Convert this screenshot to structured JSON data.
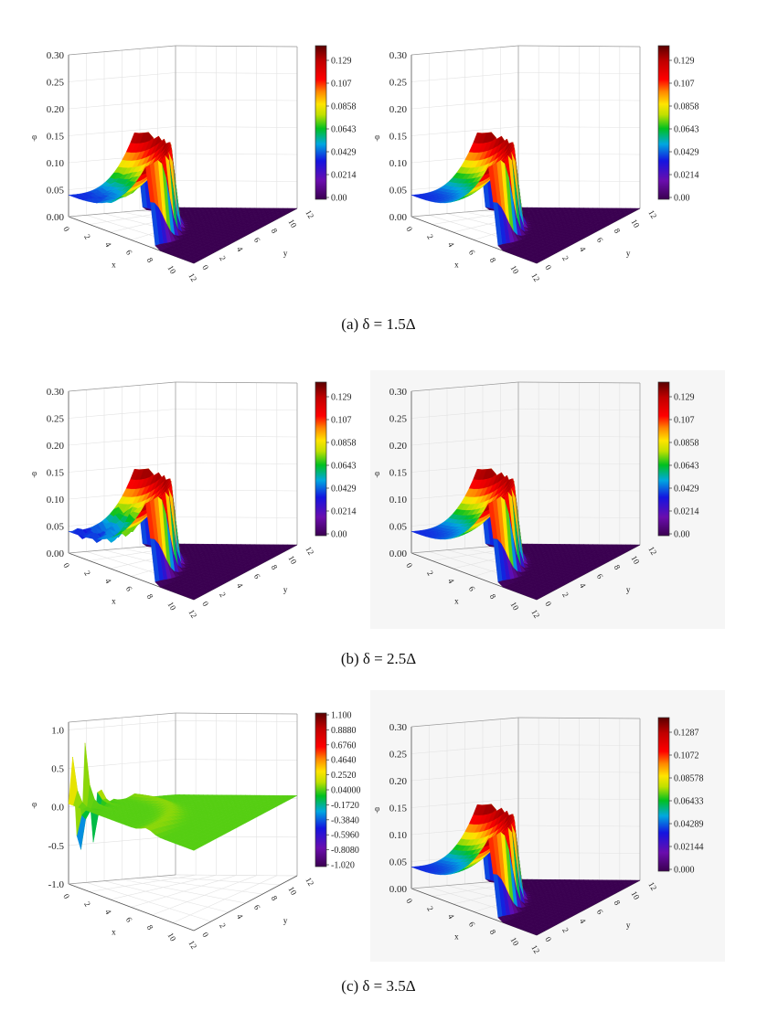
{
  "captions": [
    "(a)  δ = 1.5Δ",
    "(b)  δ = 2.5Δ",
    "(c)  δ = 3.5Δ"
  ],
  "chart_data": [
    {
      "type": "surface",
      "row": "a",
      "position": "left",
      "xlabel": "x",
      "ylabel": "y",
      "zlabel": "φ",
      "xticks": [
        "0",
        "2",
        "4",
        "6",
        "8",
        "10",
        "12"
      ],
      "yticks": [
        "0",
        "2",
        "4",
        "6",
        "8",
        "10",
        "12"
      ],
      "zlim": [
        0,
        0.3
      ],
      "zticks": [
        "0.00",
        "0.05",
        "0.10",
        "0.15",
        "0.20",
        "0.25",
        "0.30"
      ],
      "colorbar": {
        "range": [
          0,
          0.15
        ],
        "ticks": [
          "0.129",
          "0.107",
          "0.0858",
          "0.0643",
          "0.0429",
          "0.0214",
          "0.00"
        ]
      },
      "surface": {
        "plateau": 0.04,
        "peak": 0.15,
        "wall_radius": 7.5,
        "outer": 0.0,
        "noise": 0.3
      }
    },
    {
      "type": "surface",
      "row": "a",
      "position": "right",
      "xlabel": "x",
      "ylabel": "y",
      "zlabel": "φ",
      "xticks": [
        "0",
        "2",
        "4",
        "6",
        "8",
        "10",
        "12"
      ],
      "yticks": [
        "0",
        "2",
        "4",
        "6",
        "8",
        "10",
        "12"
      ],
      "zlim": [
        0,
        0.3
      ],
      "zticks": [
        "0.00",
        "0.05",
        "0.10",
        "0.15",
        "0.20",
        "0.25",
        "0.30"
      ],
      "colorbar": {
        "range": [
          0,
          0.15
        ],
        "ticks": [
          "0.129",
          "0.107",
          "0.0858",
          "0.0643",
          "0.0429",
          "0.0214",
          "0.00"
        ]
      },
      "surface": {
        "plateau": 0.04,
        "peak": 0.15,
        "wall_radius": 7.5,
        "outer": 0.0,
        "noise": 0
      }
    },
    {
      "type": "surface",
      "row": "b",
      "position": "left",
      "xlabel": "x",
      "ylabel": "y",
      "zlabel": "φ",
      "xticks": [
        "0",
        "2",
        "4",
        "6",
        "8",
        "10",
        "12"
      ],
      "yticks": [
        "0",
        "2",
        "4",
        "6",
        "8",
        "10",
        "12"
      ],
      "zlim": [
        0,
        0.3
      ],
      "zticks": [
        "0.00",
        "0.05",
        "0.10",
        "0.15",
        "0.20",
        "0.25",
        "0.30"
      ],
      "colorbar": {
        "range": [
          0,
          0.15
        ],
        "ticks": [
          "0.129",
          "0.107",
          "0.0858",
          "0.0643",
          "0.0429",
          "0.0214",
          "0.00"
        ]
      },
      "surface": {
        "plateau": 0.04,
        "peak": 0.15,
        "wall_radius": 7.5,
        "outer": 0.0,
        "noise": 1
      }
    },
    {
      "type": "surface",
      "row": "b",
      "position": "right",
      "xlabel": "x",
      "ylabel": "y",
      "zlabel": "φ",
      "xticks": [
        "0",
        "2",
        "4",
        "6",
        "8",
        "10",
        "12"
      ],
      "yticks": [
        "0",
        "2",
        "4",
        "6",
        "8",
        "10",
        "12"
      ],
      "zlim": [
        0,
        0.3
      ],
      "zticks": [
        "0.00",
        "0.05",
        "0.10",
        "0.15",
        "0.20",
        "0.25",
        "0.30"
      ],
      "colorbar": {
        "range": [
          0,
          0.15
        ],
        "ticks": [
          "0.129",
          "0.107",
          "0.0858",
          "0.0643",
          "0.0429",
          "0.0214",
          "0.00"
        ]
      },
      "surface": {
        "plateau": 0.04,
        "peak": 0.15,
        "wall_radius": 7.5,
        "outer": 0.0,
        "noise": 0
      }
    },
    {
      "type": "surface",
      "row": "c",
      "position": "left",
      "xlabel": "x",
      "ylabel": "y",
      "zlabel": "φ",
      "xticks": [
        "0",
        "2",
        "4",
        "6",
        "8",
        "10",
        "12"
      ],
      "yticks": [
        "0",
        "2",
        "4",
        "6",
        "8",
        "10",
        "12"
      ],
      "zlim": [
        -1.0,
        1.1
      ],
      "zticks": [
        "-1.0",
        "-0.5",
        "0.0",
        "0.5",
        "1.0"
      ],
      "zvalues": [
        -1.0,
        -0.5,
        0.0,
        0.5,
        1.0
      ],
      "colorbar": {
        "range": [
          -1.02,
          1.1
        ],
        "ticks": [
          "1.100",
          "0.8880",
          "0.6760",
          "0.4640",
          "0.2520",
          "0.04000",
          "-0.1720",
          "-0.3840",
          "-0.5960",
          "-0.8080",
          "-1.020"
        ]
      },
      "surface": {
        "plateau": 0.04,
        "peak": 0.12,
        "wall_radius": 7.5,
        "outer": 0.04,
        "noise": 0,
        "oscillation": 0.9
      }
    },
    {
      "type": "surface",
      "row": "c",
      "position": "right",
      "xlabel": "x",
      "ylabel": "y",
      "zlabel": "φ",
      "xticks": [
        "0",
        "2",
        "4",
        "6",
        "8",
        "10",
        "12"
      ],
      "yticks": [
        "0",
        "2",
        "4",
        "6",
        "8",
        "10",
        "12"
      ],
      "zlim": [
        0,
        0.3
      ],
      "zticks": [
        "0.00",
        "0.05",
        "0.10",
        "0.15",
        "0.20",
        "0.25",
        "0.30"
      ],
      "colorbar": {
        "range": [
          0,
          0.15
        ],
        "ticks": [
          "0.1287",
          "0.1072",
          "0.08578",
          "0.06433",
          "0.04289",
          "0.02144",
          "0.000"
        ]
      },
      "surface": {
        "plateau": 0.04,
        "peak": 0.15,
        "wall_radius": 7.5,
        "outer": 0.0,
        "noise": 0
      }
    }
  ]
}
